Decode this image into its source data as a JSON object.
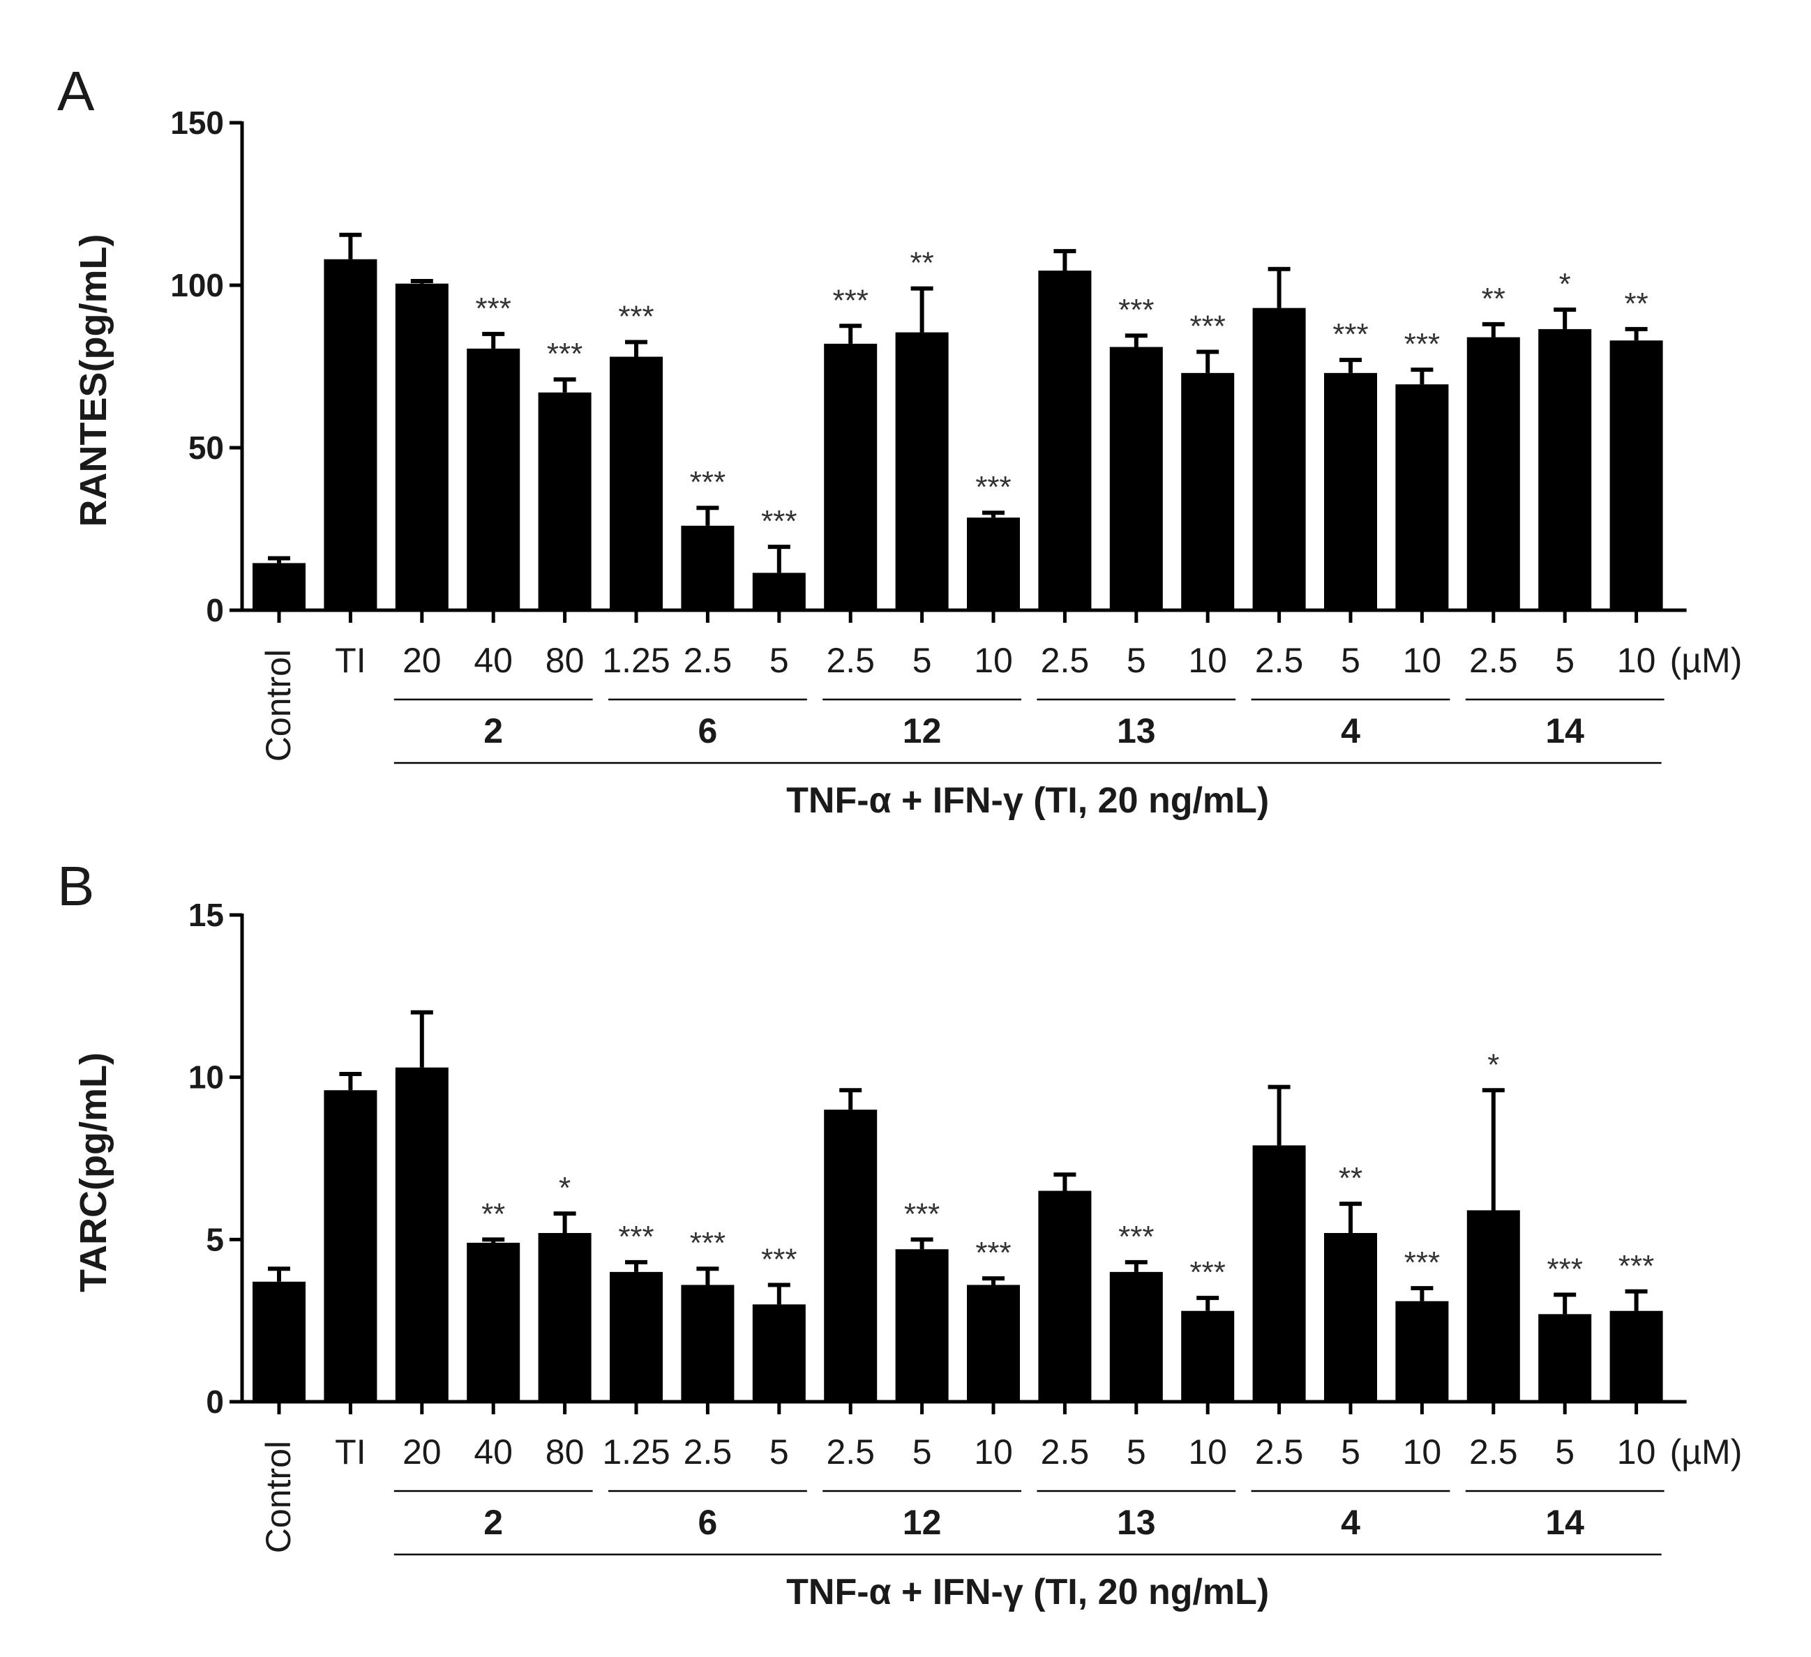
{
  "chart_data": [
    {
      "type": "bar",
      "panel": "A",
      "ylabel": "RANTES(pg/mL)",
      "ylim": [
        0,
        150
      ],
      "yticks": [
        "0",
        "50",
        "100",
        "150"
      ],
      "categories": [
        "Control",
        "TI",
        "20",
        "40",
        "80",
        "1.25",
        "2.5",
        "5",
        "2.5",
        "5",
        "10",
        "2.5",
        "5",
        "10",
        "2.5",
        "5",
        "10",
        "2.5",
        "5",
        "10"
      ],
      "unit_label": "(µM)",
      "groups": [
        {
          "label": "2",
          "from": 2,
          "to": 4
        },
        {
          "label": "6",
          "from": 5,
          "to": 7
        },
        {
          "label": "12",
          "from": 8,
          "to": 10
        },
        {
          "label": "13",
          "from": 11,
          "to": 13
        },
        {
          "label": "4",
          "from": 14,
          "to": 16
        },
        {
          "label": "14",
          "from": 17,
          "to": 19
        }
      ],
      "xlabel": "TNF-α + IFN-γ (TI, 20 ng/mL)",
      "values": [
        14.5,
        108,
        100.5,
        80.5,
        67,
        78,
        26,
        11.5,
        82,
        85.5,
        28.5,
        104.5,
        81,
        73,
        93,
        73,
        69.5,
        84,
        86.5,
        83
      ],
      "errors": [
        1.5,
        7.5,
        0.8,
        4.5,
        4,
        4.5,
        5.5,
        8,
        5.5,
        13.5,
        1.5,
        6,
        3.5,
        6.5,
        12,
        4,
        4.5,
        4,
        6,
        3.5
      ],
      "significance": [
        "",
        "",
        "",
        "***",
        "***",
        "***",
        "***",
        "***",
        "***",
        "**",
        "***",
        "",
        "***",
        "***",
        "",
        "***",
        "***",
        "**",
        "*",
        "**"
      ]
    },
    {
      "type": "bar",
      "panel": "B",
      "ylabel": "TARC(pg/mL)",
      "ylim": [
        0,
        15
      ],
      "yticks": [
        "0",
        "5",
        "10",
        "15"
      ],
      "categories": [
        "Control",
        "TI",
        "20",
        "40",
        "80",
        "1.25",
        "2.5",
        "5",
        "2.5",
        "5",
        "10",
        "2.5",
        "5",
        "10",
        "2.5",
        "5",
        "10",
        "2.5",
        "5",
        "10"
      ],
      "unit_label": "(µM)",
      "groups": [
        {
          "label": "2",
          "from": 2,
          "to": 4
        },
        {
          "label": "6",
          "from": 5,
          "to": 7
        },
        {
          "label": "12",
          "from": 8,
          "to": 10
        },
        {
          "label": "13",
          "from": 11,
          "to": 13
        },
        {
          "label": "4",
          "from": 14,
          "to": 16
        },
        {
          "label": "14",
          "from": 17,
          "to": 19
        }
      ],
      "xlabel": "TNF-α + IFN-γ (TI, 20 ng/mL)",
      "values": [
        3.7,
        9.6,
        10.3,
        4.9,
        5.2,
        4.0,
        3.6,
        3.0,
        9.0,
        4.7,
        3.6,
        6.5,
        4.0,
        2.8,
        7.9,
        5.2,
        3.1,
        5.9,
        2.7,
        2.8
      ],
      "errors": [
        0.4,
        0.5,
        1.7,
        0.1,
        0.6,
        0.3,
        0.5,
        0.6,
        0.6,
        0.3,
        0.2,
        0.5,
        0.3,
        0.4,
        1.8,
        0.9,
        0.4,
        3.7,
        0.6,
        0.6
      ],
      "significance": [
        "",
        "",
        "",
        "**",
        "*",
        "***",
        "***",
        "***",
        "",
        "***",
        "***",
        "",
        "***",
        "***",
        "",
        "**",
        "***",
        "*",
        "***",
        "***"
      ]
    }
  ]
}
